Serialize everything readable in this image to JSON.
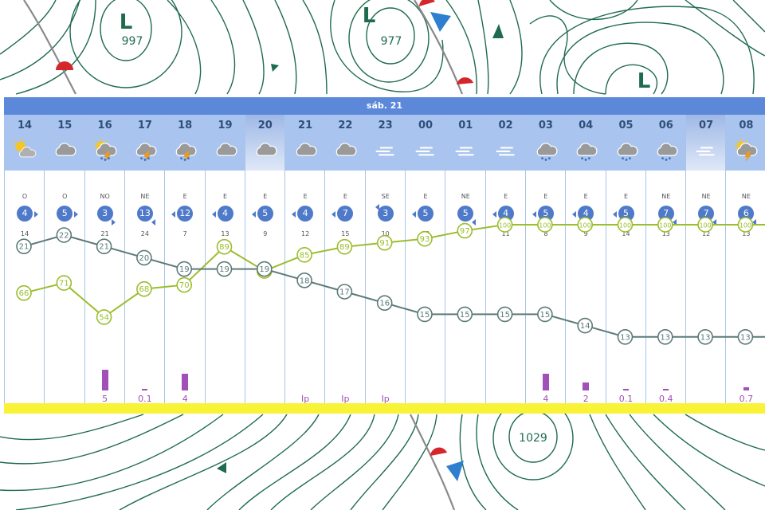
{
  "map": {
    "lows": [
      {
        "letter": "L",
        "pressure": "997"
      },
      {
        "letter": "L",
        "pressure": "977"
      },
      {
        "letter": "L",
        "pressure": ""
      }
    ],
    "highs": [
      {
        "pressure": "1029"
      }
    ]
  },
  "meteogram": {
    "day_label": "sáb. 21",
    "columns": [
      {
        "hour": "14",
        "night": false,
        "icon": "partly-sunny-icon",
        "wind_dir": "O",
        "wind_speed": "4",
        "wind_arrow": "right",
        "gust": "14",
        "temp": 21,
        "humidity": 66,
        "rain": "",
        "rain_amount": 0
      },
      {
        "hour": "15",
        "night": false,
        "icon": "cloud-icon",
        "wind_dir": "O",
        "wind_speed": "5",
        "wind_arrow": "right",
        "gust": "11",
        "temp": 22,
        "humidity": 71,
        "rain": "",
        "rain_amount": 0
      },
      {
        "hour": "16",
        "night": false,
        "icon": "sun-thunder-rain-icon",
        "wind_dir": "NO",
        "wind_speed": "3",
        "wind_arrow": "down-right",
        "gust": "21",
        "temp": 21,
        "humidity": 54,
        "rain": "5",
        "rain_amount": 5
      },
      {
        "hour": "17",
        "night": false,
        "icon": "thunder-rain-icon",
        "wind_dir": "NE",
        "wind_speed": "13",
        "wind_arrow": "down-left",
        "gust": "24",
        "temp": 20,
        "humidity": 68,
        "rain": "0.1",
        "rain_amount": 0.1
      },
      {
        "hour": "18",
        "night": false,
        "icon": "thunder-rain-icon",
        "wind_dir": "E",
        "wind_speed": "12",
        "wind_arrow": "left",
        "gust": "7",
        "temp": 19,
        "humidity": 70,
        "rain": "4",
        "rain_amount": 4
      },
      {
        "hour": "19",
        "night": false,
        "icon": "cloud-icon",
        "wind_dir": "E",
        "wind_speed": "4",
        "wind_arrow": "left",
        "gust": "13",
        "temp": 19,
        "humidity": 89,
        "rain": "",
        "rain_amount": 0
      },
      {
        "hour": "20",
        "night": true,
        "icon": "cloud-icon",
        "wind_dir": "E",
        "wind_speed": "5",
        "wind_arrow": "left",
        "gust": "9",
        "temp": 19,
        "humidity": 77,
        "rain": "",
        "rain_amount": 0
      },
      {
        "hour": "21",
        "night": false,
        "icon": "cloud-icon",
        "wind_dir": "E",
        "wind_speed": "4",
        "wind_arrow": "left",
        "gust": "12",
        "temp": 18,
        "humidity": 85,
        "rain": "Ip",
        "rain_amount": 0
      },
      {
        "hour": "22",
        "night": false,
        "icon": "cloud-icon",
        "wind_dir": "E",
        "wind_speed": "7",
        "wind_arrow": "left",
        "gust": "15",
        "temp": 17,
        "humidity": 89,
        "rain": "Ip",
        "rain_amount": 0
      },
      {
        "hour": "23",
        "night": false,
        "icon": "fog-icon",
        "wind_dir": "SE",
        "wind_speed": "3",
        "wind_arrow": "up-left",
        "gust": "10",
        "temp": 16,
        "humidity": 91,
        "rain": "Ip",
        "rain_amount": 0
      },
      {
        "hour": "00",
        "night": false,
        "icon": "fog-icon",
        "wind_dir": "E",
        "wind_speed": "5",
        "wind_arrow": "left",
        "gust": "10",
        "temp": 15,
        "humidity": 93,
        "rain": "",
        "rain_amount": 0
      },
      {
        "hour": "01",
        "night": false,
        "icon": "fog-icon",
        "wind_dir": "NE",
        "wind_speed": "5",
        "wind_arrow": "down-left",
        "gust": "10",
        "temp": 15,
        "humidity": 97,
        "rain": "",
        "rain_amount": 0
      },
      {
        "hour": "02",
        "night": false,
        "icon": "fog-icon",
        "wind_dir": "E",
        "wind_speed": "4",
        "wind_arrow": "left",
        "gust": "11",
        "temp": 15,
        "humidity": 100,
        "rain": "",
        "rain_amount": 0
      },
      {
        "hour": "03",
        "night": false,
        "icon": "cloud-rain-icon",
        "wind_dir": "E",
        "wind_speed": "5",
        "wind_arrow": "left",
        "gust": "8",
        "temp": 15,
        "humidity": 100,
        "rain": "4",
        "rain_amount": 4
      },
      {
        "hour": "04",
        "night": false,
        "icon": "cloud-rain-icon",
        "wind_dir": "E",
        "wind_speed": "4",
        "wind_arrow": "left",
        "gust": "9",
        "temp": 14,
        "humidity": 100,
        "rain": "2",
        "rain_amount": 2
      },
      {
        "hour": "05",
        "night": false,
        "icon": "cloud-rain-icon",
        "wind_dir": "E",
        "wind_speed": "5",
        "wind_arrow": "left",
        "gust": "14",
        "temp": 13,
        "humidity": 100,
        "rain": "0.1",
        "rain_amount": 0.1
      },
      {
        "hour": "06",
        "night": false,
        "icon": "cloud-rain-icon",
        "wind_dir": "NE",
        "wind_speed": "7",
        "wind_arrow": "down-left",
        "gust": "13",
        "temp": 13,
        "humidity": 100,
        "rain": "0.4",
        "rain_amount": 0.4
      },
      {
        "hour": "07",
        "night": true,
        "icon": "fog-icon",
        "wind_dir": "NE",
        "wind_speed": "7",
        "wind_arrow": "down-left",
        "gust": "12",
        "temp": 13,
        "humidity": 100,
        "rain": "",
        "rain_amount": 0
      },
      {
        "hour": "08",
        "night": false,
        "icon": "sun-thunder-icon",
        "wind_dir": "NE",
        "wind_speed": "6",
        "wind_arrow": "down-left",
        "gust": "13",
        "temp": 13,
        "humidity": 100,
        "rain": "0.7",
        "rain_amount": 0.7
      }
    ],
    "colors": {
      "temp_line": "#5c7a78",
      "humidity_line": "#9bbd2e",
      "rain_bar": "#a24fb7",
      "wind_badge": "#4f79c9",
      "header": "#5b88d8"
    }
  }
}
